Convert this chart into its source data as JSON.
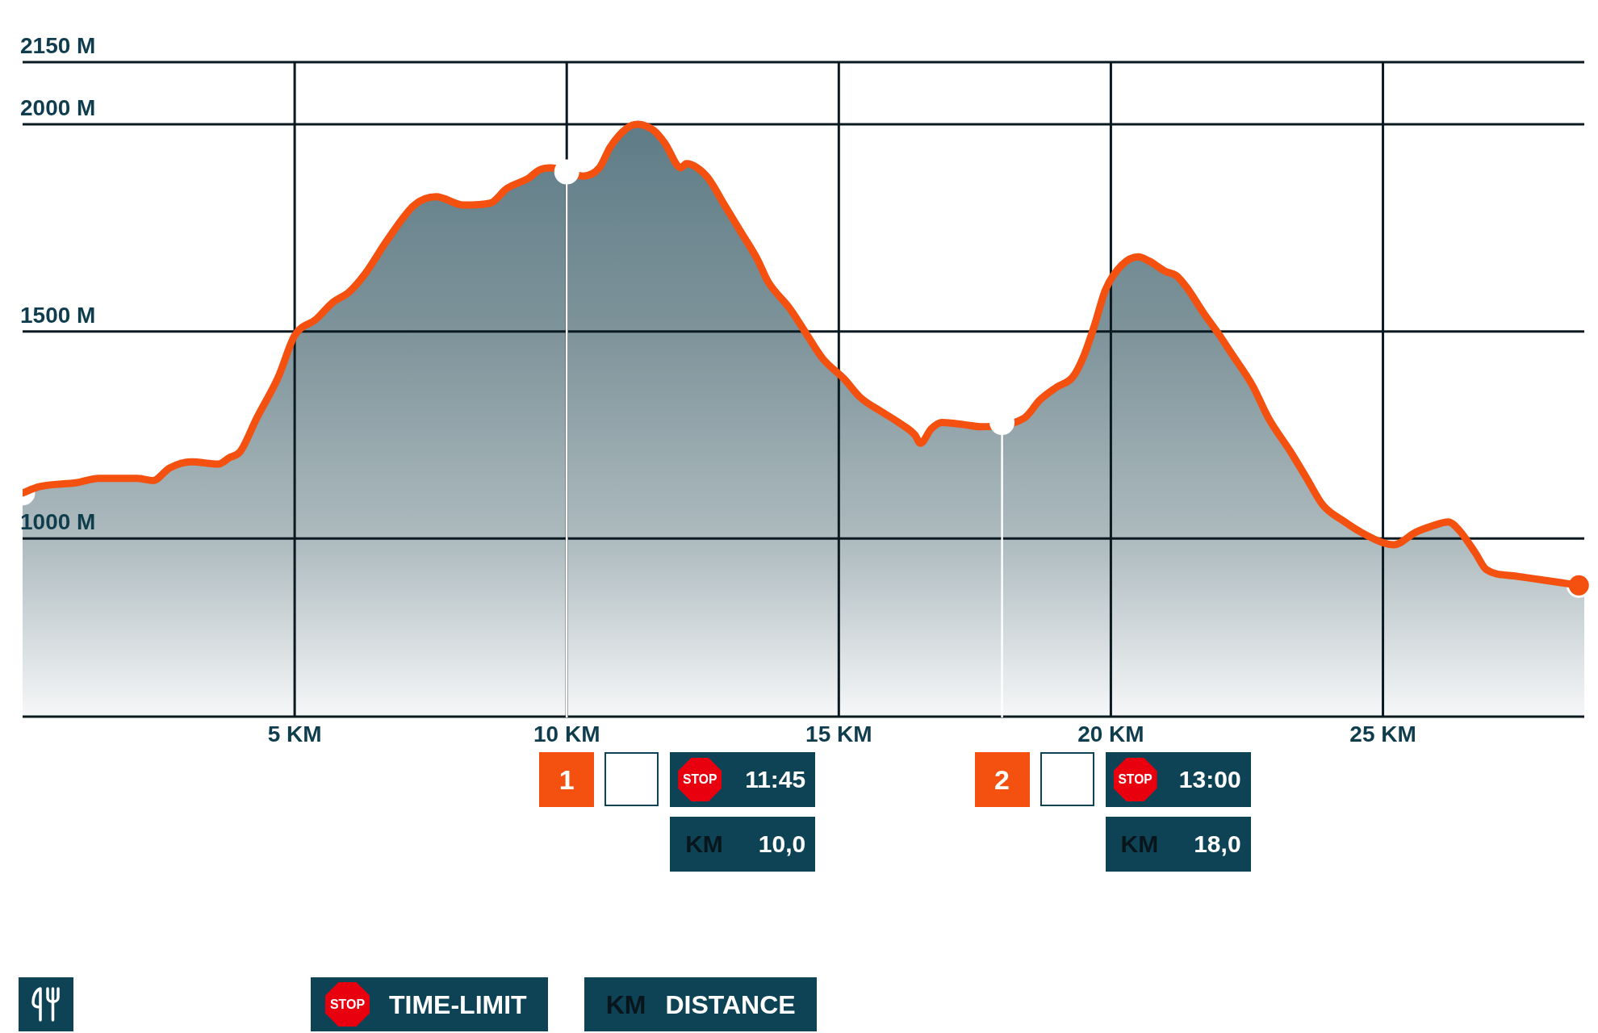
{
  "chart_data": {
    "type": "area",
    "x": [
      0,
      0.3,
      1.0,
      1.4,
      2.1,
      2.4,
      2.7,
      3.1,
      3.6,
      3.8,
      4.0,
      4.3,
      4.7,
      5.0,
      5.4,
      5.7,
      6.0,
      6.3,
      6.7,
      7.2,
      7.6,
      8.1,
      8.6,
      8.9,
      9.3,
      9.5,
      9.7,
      10.3,
      10.6,
      10.8,
      11.1,
      11.3,
      11.6,
      11.8,
      12.1,
      12.2,
      12.4,
      12.6,
      12.9,
      13.2,
      13.5,
      13.7,
      14.1,
      14.4,
      14.7,
      15.1,
      15.4,
      15.8,
      16.1,
      16.4,
      16.5,
      16.7,
      16.9,
      17.3,
      17.6,
      18.4,
      18.7,
      19.0,
      19.3,
      19.5,
      19.7,
      19.9,
      20.2,
      20.5,
      20.7,
      21.0,
      21.2,
      21.4,
      21.7,
      22.0,
      22.2,
      22.6,
      22.9,
      23.3,
      23.6,
      23.9,
      24.3,
      24.6,
      25.0,
      25.2,
      25.6,
      25.9,
      26.2,
      26.4,
      26.7,
      26.9,
      27.4,
      28.2,
      28.7
    ],
    "series": [
      {
        "type": "scatter",
        "x": [
          0,
          28.6
        ],
        "values": [
          1110,
          887
        ],
        "colors": [
          "#ffffff",
          "#f4500f"
        ],
        "marker": "circle"
      },
      {
        "color": "#f4500f",
        "values": [
          1110,
          1125,
          1135,
          1145,
          1145,
          1140,
          1170,
          1185,
          1180,
          1195,
          1210,
          1290,
          1390,
          1490,
          1530,
          1570,
          1595,
          1640,
          1720,
          1805,
          1825,
          1805,
          1810,
          1845,
          1870,
          1890,
          1895,
          1875,
          1895,
          1945,
          1990,
          2000,
          1985,
          1955,
          1895,
          1905,
          1895,
          1870,
          1805,
          1740,
          1675,
          1620,
          1555,
          1495,
          1435,
          1385,
          1340,
          1305,
          1280,
          1250,
          1230,
          1265,
          1280,
          1275,
          1270,
          1290,
          1335,
          1365,
          1390,
          1440,
          1515,
          1600,
          1660,
          1680,
          1670,
          1645,
          1635,
          1605,
          1545,
          1490,
          1450,
          1370,
          1290,
          1210,
          1145,
          1080,
          1040,
          1015,
          990,
          985,
          1015,
          1030,
          1040,
          1020,
          965,
          925,
          910,
          895,
          885
        ]
      },
      {
        "type": "scatter",
        "x": [
          10,
          18
        ],
        "values": [
          1885,
          1280
        ],
        "colors": [
          "#ffffff",
          "#ffffff"
        ],
        "marker": "circle"
      }
    ],
    "xlim": [
      0,
      28.7
    ],
    "ylim": [
      570,
      2150
    ],
    "xticks": [
      {
        "value": 5,
        "label": "5 KM"
      },
      {
        "value": 10,
        "label": "10 KM"
      },
      {
        "value": 15,
        "label": "15 KM"
      },
      {
        "value": 20,
        "label": "20 KM"
      },
      {
        "value": 25,
        "label": "25 KM"
      }
    ],
    "yticks": [
      {
        "value": 1000,
        "label": "1000 M"
      },
      {
        "value": 1500,
        "label": "1500 M"
      },
      {
        "value": 2000,
        "label": "2000 M"
      },
      {
        "value": 2150,
        "label": "2150 M"
      }
    ],
    "grid": true,
    "ref_lines": [
      {
        "axis": "x",
        "value": 10,
        "color": "#ffffff"
      },
      {
        "axis": "x",
        "value": 18,
        "color": "#ffffff"
      }
    ],
    "annotations": [
      "1",
      "11:45",
      "10,0",
      "2",
      "13:00",
      "18,0",
      "STOP",
      "TIME-LIMIT",
      "KM",
      "DISTANCE"
    ]
  }
}
